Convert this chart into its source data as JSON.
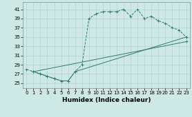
{
  "xlabel": "Humidex (Indice chaleur)",
  "bg_color": "#cde8e5",
  "grid_color": "#afd4d0",
  "line_color": "#2d7d6e",
  "xlim": [
    -0.5,
    23.5
  ],
  "ylim": [
    24.0,
    42.5
  ],
  "xticks": [
    0,
    1,
    2,
    3,
    4,
    5,
    6,
    7,
    8,
    9,
    10,
    11,
    12,
    13,
    14,
    15,
    16,
    17,
    18,
    19,
    20,
    21,
    22,
    23
  ],
  "yticks": [
    25,
    27,
    29,
    31,
    33,
    35,
    37,
    39,
    41
  ],
  "line1_x": [
    0,
    1,
    2,
    3,
    4,
    5,
    6,
    7,
    8,
    9,
    10,
    11,
    12,
    13,
    14,
    15,
    16,
    17,
    18,
    19,
    20,
    21,
    22,
    23
  ],
  "line1_y": [
    28.0,
    27.5,
    27.0,
    26.5,
    26.0,
    25.5,
    25.5,
    27.5,
    29.0,
    39.0,
    40.0,
    40.5,
    40.5,
    40.5,
    41.0,
    39.5,
    41.0,
    39.0,
    39.5,
    38.5,
    38.0,
    37.0,
    36.5,
    35.0
  ],
  "line2_x": [
    1,
    2,
    3,
    4,
    5,
    6,
    7,
    23
  ],
  "line2_y": [
    27.5,
    27.0,
    26.5,
    26.0,
    25.5,
    25.5,
    27.5,
    35.0
  ],
  "line3_x": [
    1,
    23
  ],
  "line3_y": [
    27.5,
    34.0
  ],
  "xlabel_fontsize": 6.5,
  "tick_fontsize": 5.0
}
